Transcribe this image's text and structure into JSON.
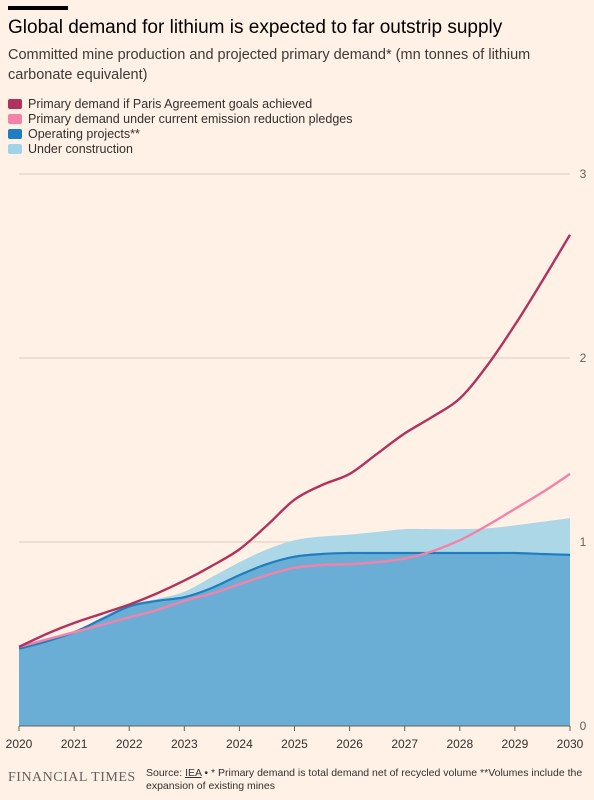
{
  "title": "Global demand for lithium is expected to far outstrip supply",
  "subtitle": "Committed mine production and projected primary demand* (mn tonnes of lithium carbonate equivalent)",
  "legend": [
    {
      "label": "Primary demand if Paris Agreement goals achieved",
      "color": "#b2325e"
    },
    {
      "label": "Primary demand under current emission reduction pledges",
      "color": "#f482a8"
    },
    {
      "label": "Operating projects**",
      "color": "#1f7ec1"
    },
    {
      "label": "Under construction",
      "color": "#9fd3e6"
    }
  ],
  "footer": {
    "brand": "FINANCIAL TIMES",
    "source_prefix": "Source:",
    "source_link": "IEA",
    "source_note": "• * Primary demand is total demand net of recycled volume **Volumes include the expansion of existing mines"
  },
  "chart_data": {
    "type": "area",
    "x": [
      2020,
      2020.5,
      2021,
      2021.5,
      2022,
      2022.5,
      2023,
      2023.5,
      2024,
      2024.5,
      2025,
      2025.5,
      2026,
      2026.5,
      2027,
      2027.5,
      2028,
      2028.5,
      2029,
      2029.5,
      2030
    ],
    "xticks": [
      "2020",
      "2021",
      "2022",
      "2023",
      "2024",
      "2025",
      "2026",
      "2027",
      "2028",
      "2029",
      "2030"
    ],
    "ylim": [
      0,
      3
    ],
    "yticks": [
      "0",
      "1",
      "2",
      "3"
    ],
    "grid": true,
    "series": [
      {
        "name": "Operating projects**",
        "kind": "area",
        "color": "#1f7ec1",
        "values": [
          0.42,
          0.46,
          0.51,
          0.58,
          0.65,
          0.68,
          0.7,
          0.75,
          0.82,
          0.88,
          0.92,
          0.935,
          0.94,
          0.94,
          0.94,
          0.94,
          0.94,
          0.94,
          0.94,
          0.935,
          0.93
        ]
      },
      {
        "name": "Under construction",
        "kind": "area-stacked-top",
        "color": "#9fd3e6",
        "values": [
          0.42,
          0.46,
          0.51,
          0.59,
          0.66,
          0.69,
          0.73,
          0.81,
          0.89,
          0.96,
          1.01,
          1.03,
          1.04,
          1.055,
          1.07,
          1.07,
          1.07,
          1.075,
          1.09,
          1.11,
          1.13
        ]
      },
      {
        "name": "Primary demand under current emission reduction pledges",
        "kind": "line",
        "color": "#f482a8",
        "values": [
          0.43,
          0.47,
          0.51,
          0.55,
          0.59,
          0.63,
          0.68,
          0.72,
          0.77,
          0.82,
          0.86,
          0.875,
          0.88,
          0.89,
          0.91,
          0.95,
          1.01,
          1.09,
          1.18,
          1.27,
          1.37
        ]
      },
      {
        "name": "Primary demand if Paris Agreement goals achieved",
        "kind": "line",
        "color": "#b2325e",
        "values": [
          0.43,
          0.5,
          0.56,
          0.61,
          0.66,
          0.72,
          0.79,
          0.87,
          0.96,
          1.09,
          1.23,
          1.31,
          1.37,
          1.48,
          1.59,
          1.68,
          1.78,
          1.96,
          2.18,
          2.42,
          2.67
        ]
      }
    ]
  }
}
